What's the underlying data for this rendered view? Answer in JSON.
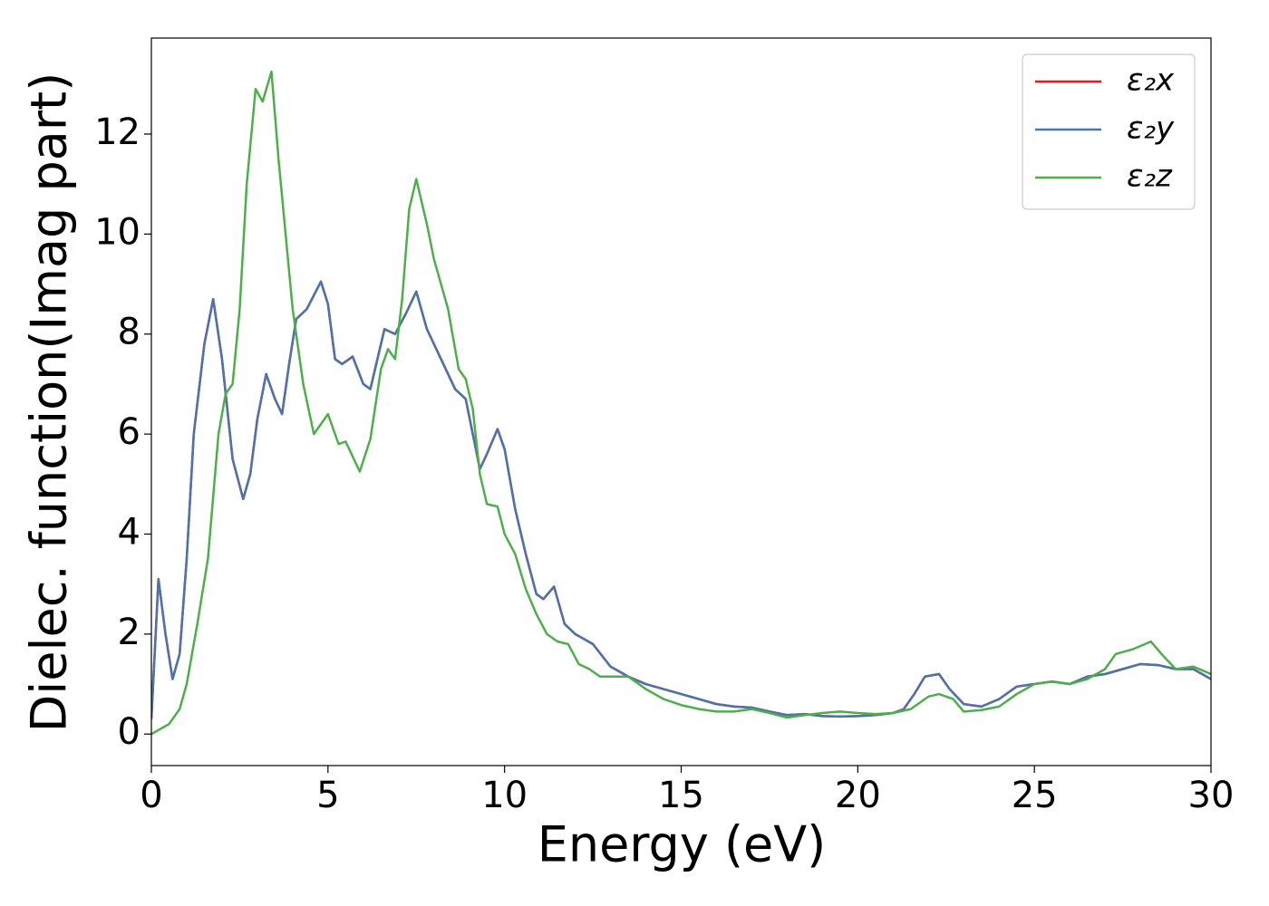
{
  "chart_data": {
    "type": "line",
    "xlabel": "Energy (eV)",
    "ylabel": "Dielec. function(Imag part)",
    "xlim": [
      0,
      30
    ],
    "ylim": [
      -0.63,
      13.92
    ],
    "xticks": [
      0,
      5,
      10,
      15,
      20,
      25,
      30
    ],
    "yticks": [
      0,
      2,
      4,
      6,
      8,
      10,
      12
    ],
    "grid": false,
    "legend": "upper right",
    "series": [
      {
        "name": "ε₂x",
        "color": "#e41a1c",
        "x": [
          0,
          0.2,
          0.4,
          0.6,
          0.8,
          1.0,
          1.2,
          1.5,
          1.75,
          2.0,
          2.3,
          2.6,
          2.8,
          3.0,
          3.25,
          3.5,
          3.7,
          3.9,
          4.1,
          4.4,
          4.8,
          5.0,
          5.2,
          5.4,
          5.7,
          6.0,
          6.2,
          6.4,
          6.6,
          6.9,
          7.2,
          7.5,
          7.8,
          8.2,
          8.6,
          8.9,
          9.1,
          9.3,
          9.5,
          9.8,
          10.0,
          10.3,
          10.6,
          10.9,
          11.1,
          11.4,
          11.7,
          12.0,
          12.5,
          13.0,
          13.5,
          14.0,
          14.5,
          15.0,
          15.5,
          16.0,
          16.5,
          17.0,
          17.5,
          18.0,
          18.5,
          19.0,
          19.5,
          20.0,
          20.5,
          21.0,
          21.3,
          21.6,
          21.9,
          22.3,
          22.6,
          23.0,
          23.5,
          24.0,
          24.5,
          25.0,
          25.5,
          26.0,
          26.5,
          27.0,
          27.5,
          28.0,
          28.5,
          29.0,
          29.5,
          30.0
        ],
        "values": [
          0.3,
          3.1,
          2.0,
          1.1,
          1.6,
          3.5,
          6.0,
          7.8,
          8.7,
          7.5,
          5.5,
          4.7,
          5.2,
          6.3,
          7.2,
          6.7,
          6.4,
          7.4,
          8.3,
          8.5,
          9.05,
          8.6,
          7.5,
          7.4,
          7.55,
          7.0,
          6.9,
          7.5,
          8.1,
          8.0,
          8.4,
          8.85,
          8.1,
          7.5,
          6.9,
          6.7,
          6.0,
          5.3,
          5.6,
          6.1,
          5.7,
          4.5,
          3.6,
          2.8,
          2.7,
          2.95,
          2.2,
          2.0,
          1.8,
          1.35,
          1.15,
          1.0,
          0.9,
          0.8,
          0.7,
          0.6,
          0.55,
          0.53,
          0.45,
          0.38,
          0.4,
          0.36,
          0.35,
          0.36,
          0.38,
          0.42,
          0.5,
          0.8,
          1.15,
          1.2,
          0.9,
          0.6,
          0.55,
          0.7,
          0.95,
          1.0,
          1.05,
          1.0,
          1.15,
          1.2,
          1.3,
          1.4,
          1.38,
          1.3,
          1.3,
          1.1
        ]
      },
      {
        "name": "ε₂y",
        "color": "#4a74ae",
        "x": [
          0,
          0.2,
          0.4,
          0.6,
          0.8,
          1.0,
          1.2,
          1.5,
          1.75,
          2.0,
          2.3,
          2.6,
          2.8,
          3.0,
          3.25,
          3.5,
          3.7,
          3.9,
          4.1,
          4.4,
          4.8,
          5.0,
          5.2,
          5.4,
          5.7,
          6.0,
          6.2,
          6.4,
          6.6,
          6.9,
          7.2,
          7.5,
          7.8,
          8.2,
          8.6,
          8.9,
          9.1,
          9.3,
          9.5,
          9.8,
          10.0,
          10.3,
          10.6,
          10.9,
          11.1,
          11.4,
          11.7,
          12.0,
          12.5,
          13.0,
          13.5,
          14.0,
          14.5,
          15.0,
          15.5,
          16.0,
          16.5,
          17.0,
          17.5,
          18.0,
          18.5,
          19.0,
          19.5,
          20.0,
          20.5,
          21.0,
          21.3,
          21.6,
          21.9,
          22.3,
          22.6,
          23.0,
          23.5,
          24.0,
          24.5,
          25.0,
          25.5,
          26.0,
          26.5,
          27.0,
          27.5,
          28.0,
          28.5,
          29.0,
          29.5,
          30.0
        ],
        "values": [
          0.3,
          3.1,
          2.0,
          1.1,
          1.6,
          3.5,
          6.0,
          7.8,
          8.7,
          7.5,
          5.5,
          4.7,
          5.2,
          6.3,
          7.2,
          6.7,
          6.4,
          7.4,
          8.3,
          8.5,
          9.05,
          8.6,
          7.5,
          7.4,
          7.55,
          7.0,
          6.9,
          7.5,
          8.1,
          8.0,
          8.4,
          8.85,
          8.1,
          7.5,
          6.9,
          6.7,
          6.0,
          5.3,
          5.6,
          6.1,
          5.7,
          4.5,
          3.6,
          2.8,
          2.7,
          2.95,
          2.2,
          2.0,
          1.8,
          1.35,
          1.15,
          1.0,
          0.9,
          0.8,
          0.7,
          0.6,
          0.55,
          0.53,
          0.45,
          0.38,
          0.4,
          0.36,
          0.35,
          0.36,
          0.38,
          0.42,
          0.5,
          0.8,
          1.15,
          1.2,
          0.9,
          0.6,
          0.55,
          0.7,
          0.95,
          1.0,
          1.05,
          1.0,
          1.15,
          1.2,
          1.3,
          1.4,
          1.38,
          1.3,
          1.3,
          1.1
        ]
      },
      {
        "name": "ε₂z",
        "color": "#4daf4a",
        "x": [
          0,
          0.5,
          0.8,
          1.0,
          1.3,
          1.6,
          1.9,
          2.1,
          2.3,
          2.5,
          2.7,
          2.95,
          3.15,
          3.4,
          3.6,
          3.8,
          4.0,
          4.3,
          4.6,
          5.0,
          5.3,
          5.5,
          5.9,
          6.2,
          6.5,
          6.7,
          6.9,
          7.1,
          7.3,
          7.5,
          7.8,
          8.0,
          8.4,
          8.7,
          8.9,
          9.1,
          9.3,
          9.5,
          9.8,
          10.0,
          10.3,
          10.6,
          10.9,
          11.2,
          11.5,
          11.8,
          12.1,
          12.4,
          12.7,
          13.0,
          13.5,
          14.0,
          14.5,
          15.0,
          15.5,
          16.0,
          16.5,
          17.0,
          17.5,
          18.0,
          18.5,
          19.0,
          19.5,
          20.0,
          20.5,
          21.0,
          21.5,
          22.0,
          22.3,
          22.7,
          23.0,
          23.5,
          24.0,
          24.5,
          25.0,
          25.5,
          26.0,
          26.5,
          27.0,
          27.3,
          27.8,
          28.3,
          28.6,
          29.0,
          29.5,
          30.0
        ],
        "values": [
          0.0,
          0.2,
          0.5,
          1.0,
          2.2,
          3.5,
          6.0,
          6.8,
          7.0,
          8.5,
          11.0,
          12.9,
          12.65,
          13.25,
          11.5,
          10.0,
          8.5,
          7.0,
          6.0,
          6.4,
          5.8,
          5.85,
          5.25,
          5.9,
          7.3,
          7.7,
          7.5,
          8.7,
          10.5,
          11.1,
          10.2,
          9.5,
          8.5,
          7.3,
          7.1,
          6.5,
          5.2,
          4.6,
          4.55,
          4.0,
          3.6,
          2.9,
          2.4,
          2.0,
          1.85,
          1.8,
          1.4,
          1.3,
          1.15,
          1.15,
          1.15,
          0.9,
          0.7,
          0.58,
          0.5,
          0.45,
          0.45,
          0.5,
          0.42,
          0.33,
          0.38,
          0.42,
          0.45,
          0.42,
          0.4,
          0.42,
          0.5,
          0.75,
          0.8,
          0.7,
          0.45,
          0.48,
          0.55,
          0.8,
          1.0,
          1.05,
          1.0,
          1.1,
          1.3,
          1.6,
          1.7,
          1.85,
          1.6,
          1.3,
          1.35,
          1.2
        ]
      }
    ]
  }
}
